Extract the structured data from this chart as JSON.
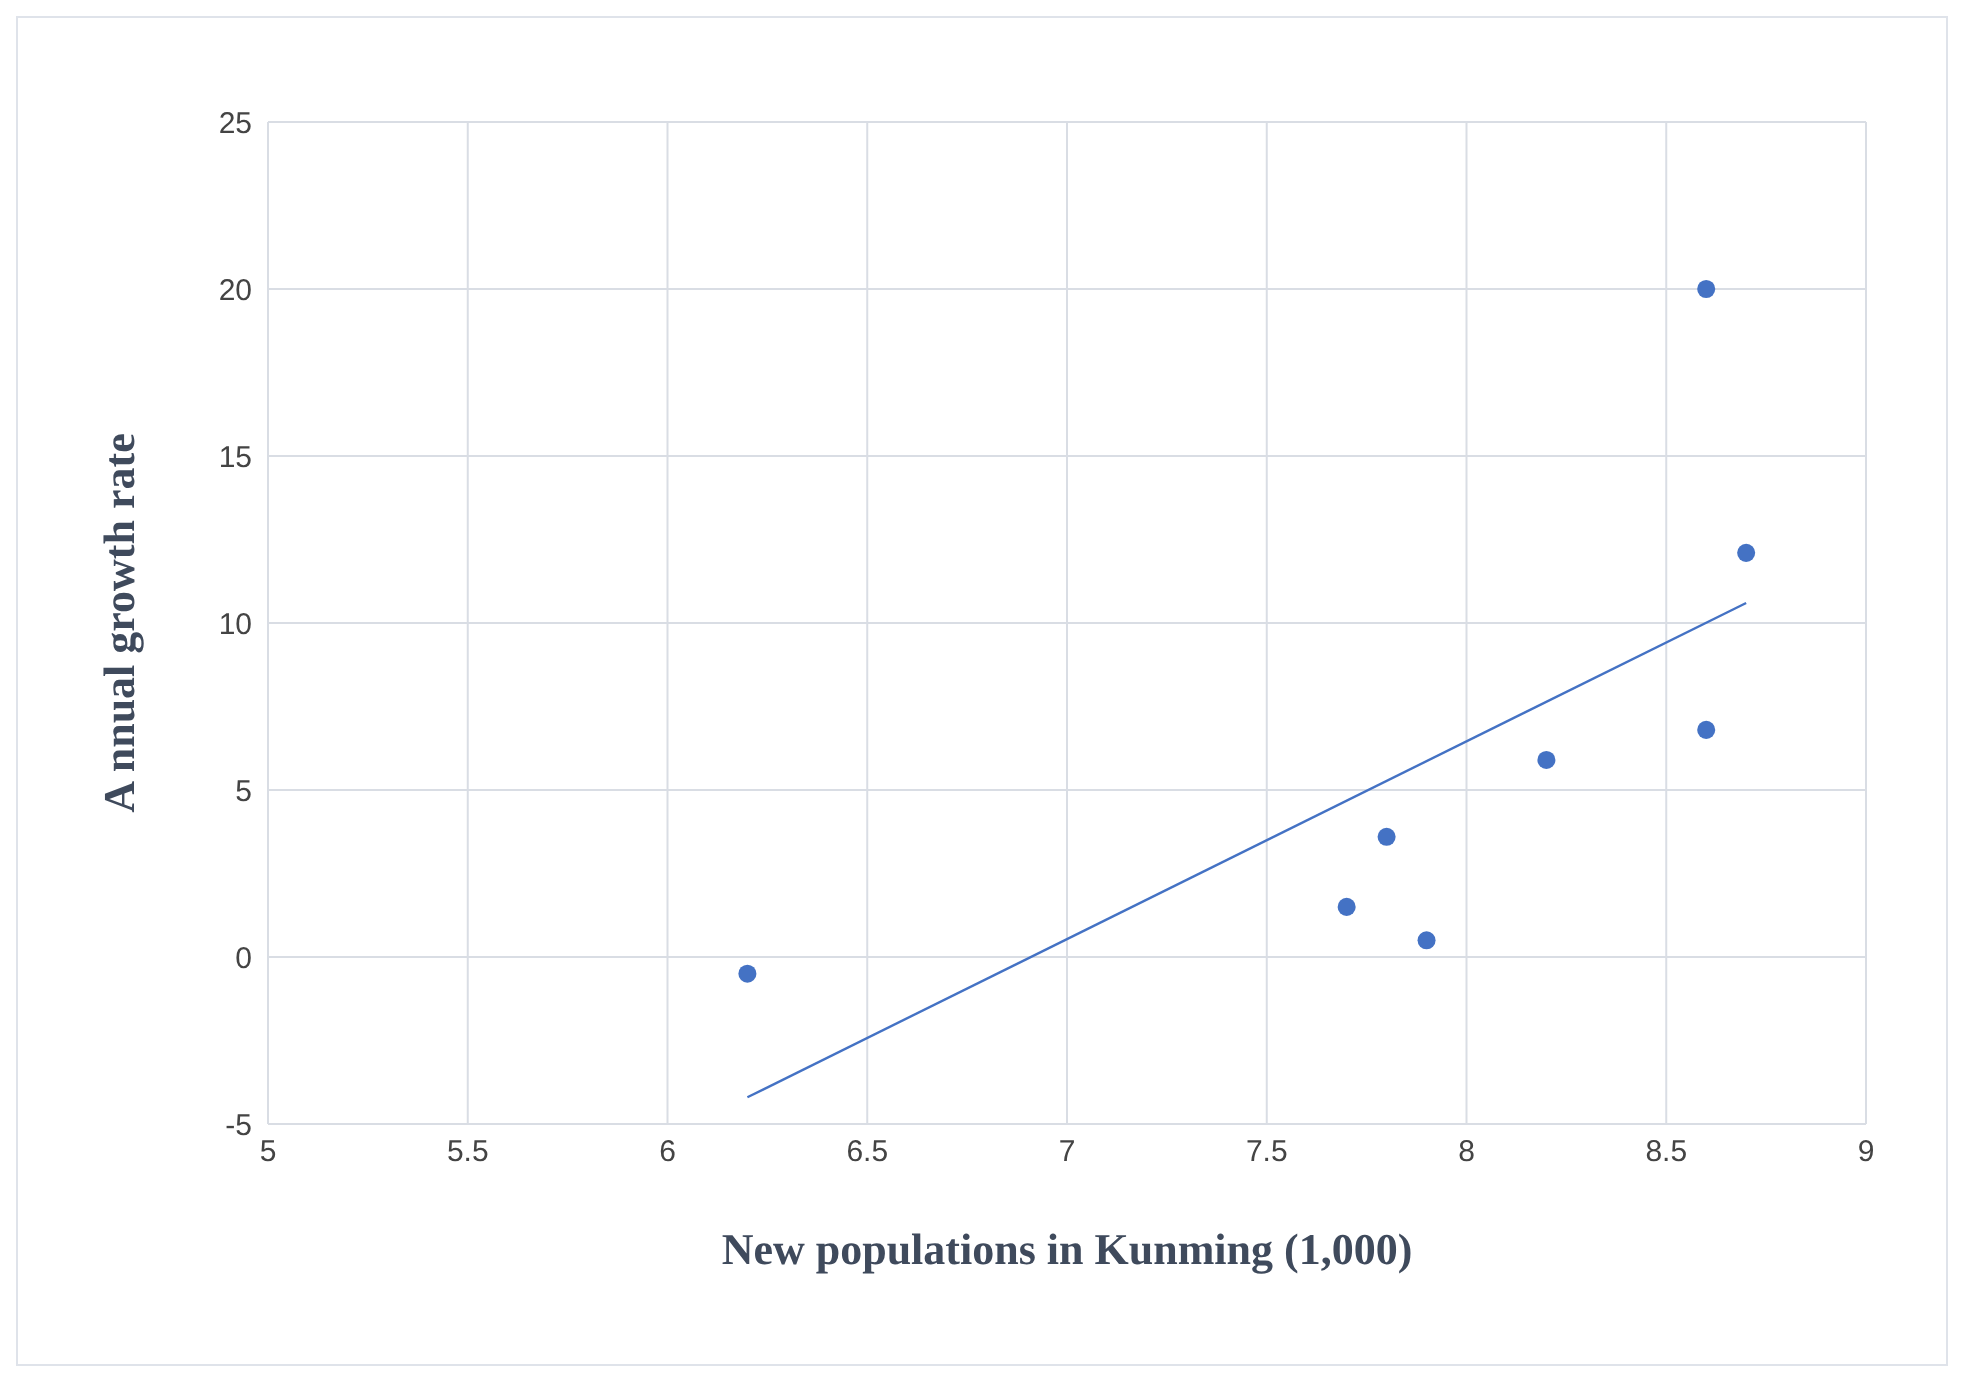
{
  "chart_data": {
    "type": "scatter",
    "xlabel": "New populations in Kunming (1,000)",
    "ylabel": "A nnual growth rate",
    "xlim": [
      5,
      9
    ],
    "xticks": [
      5,
      5.5,
      6,
      6.5,
      7,
      7.5,
      8,
      8.5,
      9
    ],
    "ylim": [
      -5,
      25
    ],
    "yticks": [
      -5,
      0,
      5,
      10,
      15,
      20,
      25
    ],
    "grid": true,
    "marker": "circle",
    "series": [
      {
        "color": "#4472c4",
        "x": [
          6.2,
          7.7,
          7.8,
          7.9,
          8.2,
          8.6,
          8.6,
          8.7
        ],
        "values": [
          -0.5,
          1.5,
          3.6,
          0.5,
          5.9,
          6.8,
          20,
          12.1
        ]
      },
      {
        "type": "line",
        "color": "#4472c4",
        "marker": "none",
        "x": [
          6.2,
          8.7
        ],
        "values": [
          -4.2,
          10.6
        ]
      }
    ]
  }
}
